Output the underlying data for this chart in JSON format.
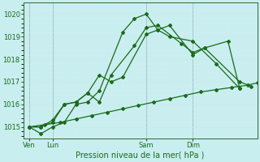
{
  "title": "Pression niveau de la mer( hPa )",
  "bg_color": "#c8eef0",
  "line_color": "#1a6b1a",
  "ylim": [
    1014.5,
    1020.5
  ],
  "yticks": [
    1015,
    1016,
    1017,
    1018,
    1019,
    1020
  ],
  "day_positions": [
    0,
    2,
    10,
    14
  ],
  "day_labels": [
    "Ven",
    "Lun",
    "Sam",
    "Dim"
  ],
  "xlim": [
    -0.5,
    19.5
  ],
  "minor_grid_step": 1,
  "series": [
    {
      "x": [
        0,
        1,
        2,
        3,
        4,
        5,
        6,
        8,
        9,
        10,
        11,
        12,
        14,
        16,
        18
      ],
      "y": [
        1015.0,
        1014.7,
        1015.0,
        1015.2,
        1016.0,
        1016.1,
        1016.6,
        1019.2,
        1019.8,
        1020.0,
        1019.3,
        1019.0,
        1018.8,
        1017.8,
        1016.7
      ]
    },
    {
      "x": [
        0,
        1,
        2,
        3,
        4,
        5,
        6,
        7,
        8,
        10,
        11,
        12,
        14,
        15,
        18,
        19
      ],
      "y": [
        1015.0,
        1015.0,
        1015.2,
        1016.0,
        1016.1,
        1016.5,
        1017.3,
        1017.0,
        1017.2,
        1019.1,
        1019.3,
        1019.5,
        1018.2,
        1018.5,
        1017.0,
        1016.8
      ]
    },
    {
      "x": [
        0,
        1,
        2,
        3,
        4,
        5,
        6,
        7,
        9,
        10,
        11,
        13,
        14,
        15,
        17,
        18
      ],
      "y": [
        1015.0,
        1015.0,
        1015.3,
        1016.0,
        1016.1,
        1016.5,
        1016.1,
        1017.3,
        1018.6,
        1019.4,
        1019.5,
        1018.7,
        1018.3,
        1018.5,
        1018.8,
        1016.7
      ]
    },
    {
      "x": [
        0,
        1.33,
        2.67,
        4.0,
        5.33,
        6.67,
        8.0,
        9.33,
        10.67,
        12.0,
        13.33,
        14.67,
        16.0,
        17.33,
        18.67,
        19.5
      ],
      "y": [
        1015.0,
        1015.1,
        1015.2,
        1015.35,
        1015.5,
        1015.65,
        1015.8,
        1015.95,
        1016.1,
        1016.25,
        1016.4,
        1016.55,
        1016.65,
        1016.75,
        1016.85,
        1016.95
      ]
    }
  ]
}
